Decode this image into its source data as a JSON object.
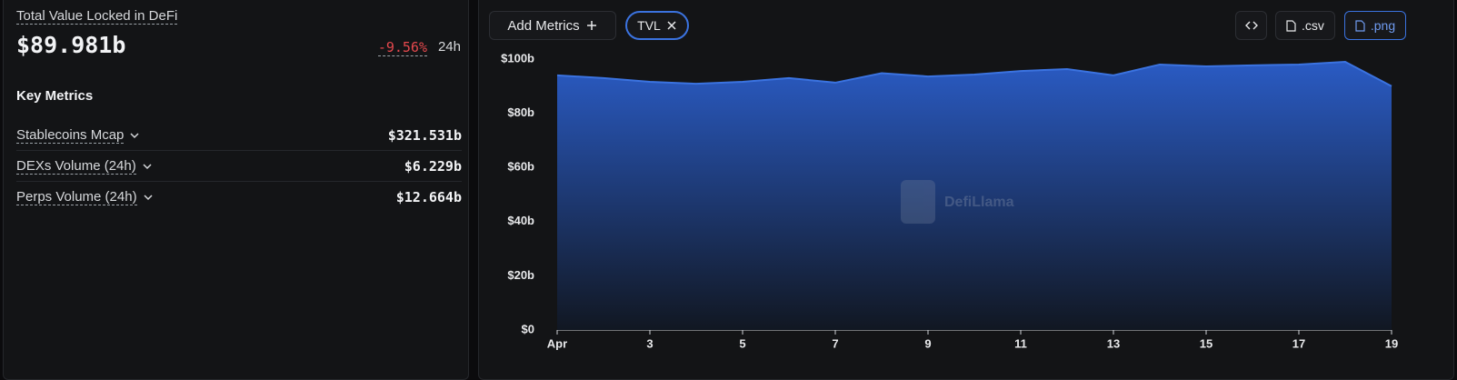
{
  "summary": {
    "title": "Total Value Locked in DeFi",
    "value": "$89.981b",
    "change": "-9.56%",
    "period": "24h",
    "section_title": "Key Metrics",
    "metrics": [
      {
        "name": "Stablecoins Mcap",
        "value": "$321.531b"
      },
      {
        "name": "DEXs Volume (24h)",
        "value": "$6.229b"
      },
      {
        "name": "Perps Volume (24h)",
        "value": "$12.664b"
      }
    ]
  },
  "toolbar": {
    "add_metrics": "Add Metrics",
    "selected_metric": "TVL",
    "csv": ".csv",
    "png": ".png"
  },
  "watermark": "DefiLlama",
  "chart_data": {
    "type": "area",
    "categories": [
      "Apr",
      null,
      "3",
      null,
      "5",
      null,
      "7",
      null,
      "9",
      null,
      "11",
      null,
      "13",
      null,
      "15",
      null,
      "17",
      null,
      "19"
    ],
    "series": [
      {
        "name": "TVL",
        "color": "#3b73e0",
        "values": [
          94.0,
          93.0,
          91.6,
          90.9,
          91.6,
          93.0,
          91.3,
          94.8,
          93.6,
          94.3,
          95.6,
          96.3,
          94.0,
          98.0,
          97.3,
          97.7,
          98.0,
          99.0,
          90.0
        ]
      }
    ],
    "ylim": [
      0,
      100
    ],
    "yticks": [
      {
        "value": 0,
        "label": "$0"
      },
      {
        "value": 20,
        "label": "$20b"
      },
      {
        "value": 40,
        "label": "$40b"
      },
      {
        "value": 60,
        "label": "$60b"
      },
      {
        "value": 80,
        "label": "$80b"
      },
      {
        "value": 100,
        "label": "$100b"
      }
    ],
    "grid": false
  }
}
